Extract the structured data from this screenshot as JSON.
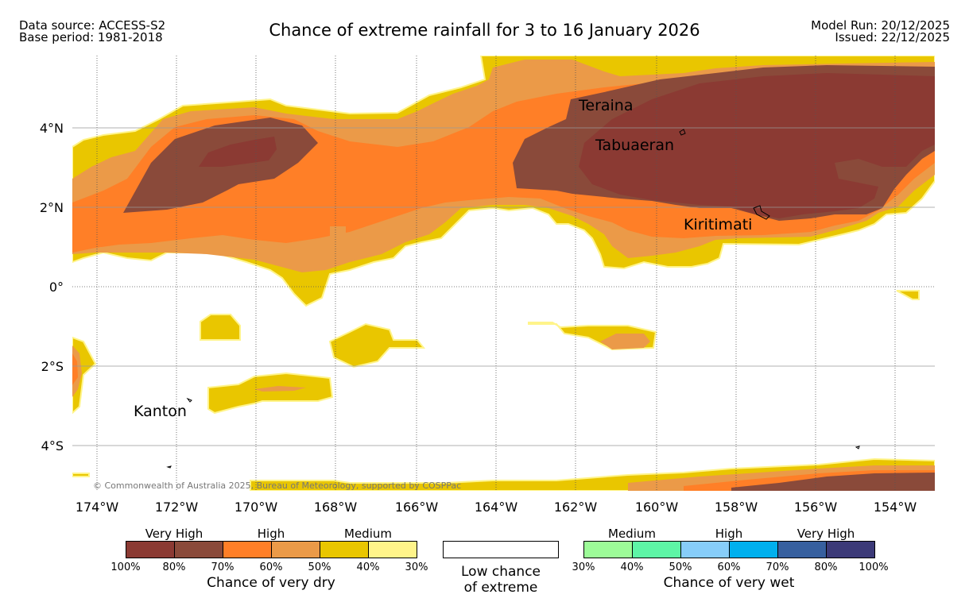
{
  "header": {
    "data_source": "Data source: ACCESS-S2",
    "base_period": "Base period: 1981-2018",
    "title": "Chance of extreme rainfall for 3 to 16 January 2026",
    "model_run": "Model Run: 20/12/2025",
    "issued": "Issued: 22/12/2025"
  },
  "map": {
    "lon_labels": [
      "174°W",
      "172°W",
      "170°W",
      "168°W",
      "166°W",
      "164°W",
      "162°W",
      "160°W",
      "158°W",
      "156°W",
      "154°W"
    ],
    "lat_labels": [
      "4°N",
      "2°N",
      "0°",
      "2°S",
      "4°S"
    ],
    "places": [
      {
        "name": "Teraina",
        "lon": -161.4,
        "lat": 4.7
      },
      {
        "name": "Tabuaeran",
        "lon": -159.4,
        "lat": 3.85
      },
      {
        "name": "Kiritimati",
        "lon": -157.4,
        "lat": 1.9
      },
      {
        "name": "Kanton",
        "lon": -171.7,
        "lat": -2.8
      }
    ],
    "copyright": "© Commonwealth of Australia 2025, Bureau of Meteorology, supported by COSPPac"
  },
  "legend": {
    "dry": {
      "colors": [
        "#8b3a33",
        "#8a4a3a",
        "#ff7f27",
        "#eb9a48",
        "#e9c600",
        "#fff48a"
      ],
      "levels": [
        "Very High",
        "High",
        "Medium"
      ],
      "ticks": [
        "100%",
        "80%",
        "70%",
        "60%",
        "50%",
        "40%",
        "30%"
      ],
      "title": "Chance of very dry"
    },
    "low": {
      "line1": "Low chance",
      "line2": "of extreme"
    },
    "wet": {
      "colors": [
        "#9dfb98",
        "#5ef5a6",
        "#87cdf9",
        "#00b0ee",
        "#37609f",
        "#3c3a78"
      ],
      "levels": [
        "Medium",
        "High",
        "Very High"
      ],
      "ticks": [
        "30%",
        "40%",
        "50%",
        "60%",
        "70%",
        "80%",
        "100%"
      ],
      "title": "Chance of very wet"
    }
  }
}
